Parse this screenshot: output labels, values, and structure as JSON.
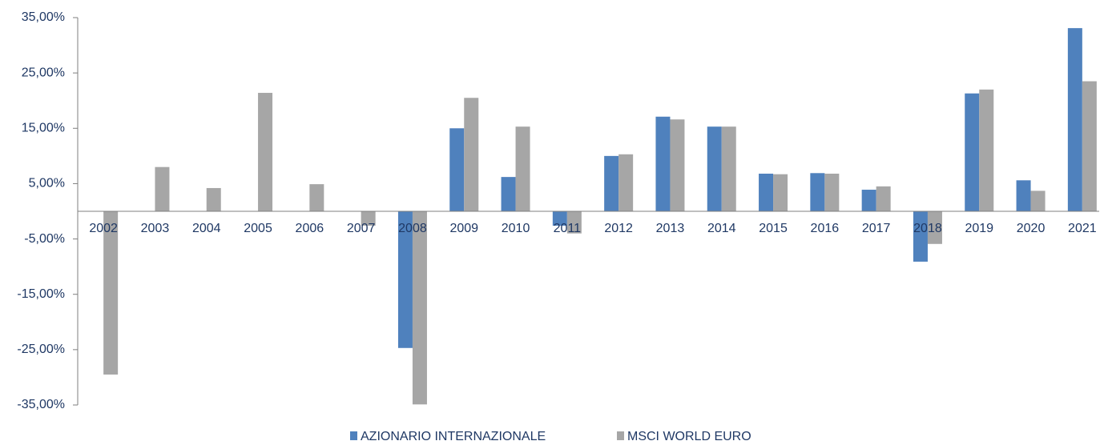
{
  "chart_data": {
    "type": "bar",
    "categories": [
      "2002",
      "2003",
      "2004",
      "2005",
      "2006",
      "2007",
      "2008",
      "2009",
      "2010",
      "2011",
      "2012",
      "2013",
      "2014",
      "2015",
      "2016",
      "2017",
      "2018",
      "2019",
      "2020",
      "2021"
    ],
    "series": [
      {
        "name": "AZIONARIO INTERNAZIONALE",
        "color": "#4f81bd",
        "values": [
          null,
          null,
          null,
          null,
          null,
          null,
          -24.7,
          15.0,
          6.2,
          -2.6,
          10.0,
          17.1,
          15.3,
          6.8,
          6.9,
          3.9,
          -9.1,
          21.3,
          5.6,
          33.1
        ]
      },
      {
        "name": "MSCI WORLD EURO",
        "color": "#a6a6a6",
        "values": [
          -29.5,
          8.0,
          4.2,
          21.4,
          4.9,
          -2.6,
          -34.9,
          20.5,
          15.3,
          -4.0,
          10.3,
          16.6,
          15.3,
          6.7,
          6.8,
          4.5,
          -5.9,
          22.0,
          3.7,
          23.5
        ]
      }
    ],
    "ylim": [
      -35,
      35
    ],
    "yticks": [
      {
        "value": 35,
        "label": "35,00%"
      },
      {
        "value": 25,
        "label": "25,00%"
      },
      {
        "value": 15,
        "label": "15,00%"
      },
      {
        "value": 5,
        "label": "5,00%"
      },
      {
        "value": -5,
        "label": "-5,00%"
      },
      {
        "value": -15,
        "label": "-15,00%"
      },
      {
        "value": -25,
        "label": "-25,00%"
      },
      {
        "value": -35,
        "label": "-35,00%"
      }
    ],
    "grid": false,
    "legend": "bottom"
  }
}
